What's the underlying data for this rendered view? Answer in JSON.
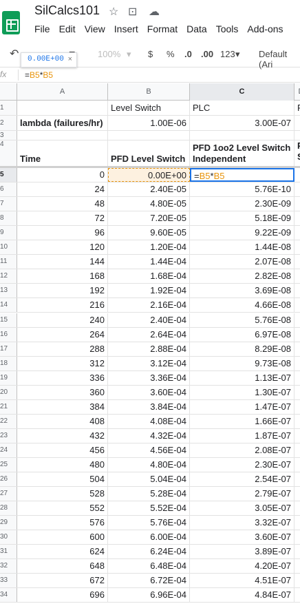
{
  "doc": {
    "title": "SilCalcs101"
  },
  "menu": [
    "File",
    "Edit",
    "View",
    "Insert",
    "Format",
    "Data",
    "Tools",
    "Add-ons"
  ],
  "toolbar": {
    "zoom": "100%",
    "currency": "$",
    "percent": "%",
    "dec_less": ".0",
    "dec_more": ".00",
    "format": "123",
    "font": "Default (Ari"
  },
  "tooltip": {
    "value": "0.00E+00",
    "close": "×"
  },
  "formula_bar": {
    "fx": "fx",
    "formula_parts": [
      "=",
      "B5",
      "*",
      "B5"
    ]
  },
  "columns": [
    "A",
    "B",
    "C",
    "D"
  ],
  "rows": [
    {
      "n": "1",
      "a": "",
      "b": "Level Switch",
      "c": "PLC",
      "d": "F"
    },
    {
      "n": "2",
      "a": "lambda (failures/hr)",
      "b": "1.00E-06",
      "c": "3.00E-07",
      "d": ""
    },
    {
      "n": "3",
      "a": "",
      "b": "",
      "c": "",
      "d": ""
    },
    {
      "n": "4",
      "a": "Time",
      "b": "PFD Level Switch",
      "c": "PFD 1oo2 Level Switch Independent",
      "d": "P S"
    },
    {
      "n": "5",
      "a": "0",
      "b": "0.00E+00",
      "c": "=B5*B5",
      "d": ""
    },
    {
      "n": "6",
      "a": "24",
      "b": "2.40E-05",
      "c": "5.76E-10",
      "d": ""
    },
    {
      "n": "7",
      "a": "48",
      "b": "4.80E-05",
      "c": "2.30E-09",
      "d": ""
    },
    {
      "n": "8",
      "a": "72",
      "b": "7.20E-05",
      "c": "5.18E-09",
      "d": ""
    },
    {
      "n": "9",
      "a": "96",
      "b": "9.60E-05",
      "c": "9.22E-09",
      "d": ""
    },
    {
      "n": "10",
      "a": "120",
      "b": "1.20E-04",
      "c": "1.44E-08",
      "d": ""
    },
    {
      "n": "11",
      "a": "144",
      "b": "1.44E-04",
      "c": "2.07E-08",
      "d": ""
    },
    {
      "n": "12",
      "a": "168",
      "b": "1.68E-04",
      "c": "2.82E-08",
      "d": ""
    },
    {
      "n": "13",
      "a": "192",
      "b": "1.92E-04",
      "c": "3.69E-08",
      "d": ""
    },
    {
      "n": "14",
      "a": "216",
      "b": "2.16E-04",
      "c": "4.66E-08",
      "d": ""
    },
    {
      "n": "15",
      "a": "240",
      "b": "2.40E-04",
      "c": "5.76E-08",
      "d": ""
    },
    {
      "n": "16",
      "a": "264",
      "b": "2.64E-04",
      "c": "6.97E-08",
      "d": ""
    },
    {
      "n": "17",
      "a": "288",
      "b": "2.88E-04",
      "c": "8.29E-08",
      "d": ""
    },
    {
      "n": "18",
      "a": "312",
      "b": "3.12E-04",
      "c": "9.73E-08",
      "d": ""
    },
    {
      "n": "19",
      "a": "336",
      "b": "3.36E-04",
      "c": "1.13E-07",
      "d": ""
    },
    {
      "n": "20",
      "a": "360",
      "b": "3.60E-04",
      "c": "1.30E-07",
      "d": ""
    },
    {
      "n": "21",
      "a": "384",
      "b": "3.84E-04",
      "c": "1.47E-07",
      "d": ""
    },
    {
      "n": "22",
      "a": "408",
      "b": "4.08E-04",
      "c": "1.66E-07",
      "d": ""
    },
    {
      "n": "23",
      "a": "432",
      "b": "4.32E-04",
      "c": "1.87E-07",
      "d": ""
    },
    {
      "n": "24",
      "a": "456",
      "b": "4.56E-04",
      "c": "2.08E-07",
      "d": ""
    },
    {
      "n": "25",
      "a": "480",
      "b": "4.80E-04",
      "c": "2.30E-07",
      "d": ""
    },
    {
      "n": "26",
      "a": "504",
      "b": "5.04E-04",
      "c": "2.54E-07",
      "d": ""
    },
    {
      "n": "27",
      "a": "528",
      "b": "5.28E-04",
      "c": "2.79E-07",
      "d": ""
    },
    {
      "n": "28",
      "a": "552",
      "b": "5.52E-04",
      "c": "3.05E-07",
      "d": ""
    },
    {
      "n": "29",
      "a": "576",
      "b": "5.76E-04",
      "c": "3.32E-07",
      "d": ""
    },
    {
      "n": "30",
      "a": "600",
      "b": "6.00E-04",
      "c": "3.60E-07",
      "d": ""
    },
    {
      "n": "31",
      "a": "624",
      "b": "6.24E-04",
      "c": "3.89E-07",
      "d": ""
    },
    {
      "n": "32",
      "a": "648",
      "b": "6.48E-04",
      "c": "4.20E-07",
      "d": ""
    },
    {
      "n": "33",
      "a": "672",
      "b": "6.72E-04",
      "c": "4.51E-07",
      "d": ""
    },
    {
      "n": "34",
      "a": "696",
      "b": "6.96E-04",
      "c": "4.84E-07",
      "d": ""
    }
  ]
}
